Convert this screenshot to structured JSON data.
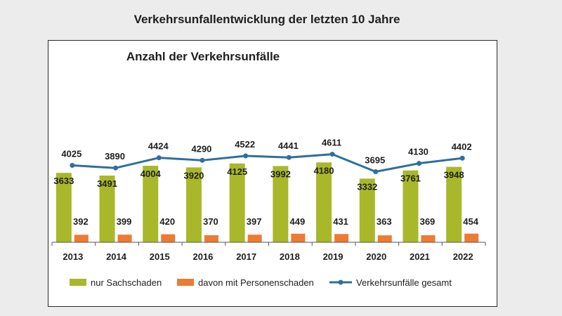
{
  "page": {
    "title": "Verkehrsunfallentwicklung der letzten 10 Jahre"
  },
  "colors": {
    "sach": "#a8b82a",
    "personen": "#ee7a33",
    "gesamt": "#2f6f9c"
  },
  "chart_data": {
    "type": "bar",
    "title": "Anzahl der Verkehrsunfälle",
    "xlabel": "",
    "ylabel": "",
    "ylim": [
      0,
      5000
    ],
    "grid": false,
    "legend": "bottom",
    "categories": [
      "2013",
      "2014",
      "2015",
      "2016",
      "2017",
      "2018",
      "2019",
      "2020",
      "2021",
      "2022"
    ],
    "series": [
      {
        "name": "nur Sachschaden",
        "type": "bar",
        "values": [
          3633,
          3491,
          4004,
          3920,
          4125,
          3992,
          4180,
          3332,
          3761,
          3948
        ]
      },
      {
        "name": "davon mit Personenschaden",
        "type": "bar",
        "values": [
          392,
          399,
          420,
          370,
          397,
          449,
          431,
          363,
          369,
          454
        ]
      },
      {
        "name": "Verkehrsunfälle gesamt",
        "type": "line",
        "values": [
          4025,
          3890,
          4424,
          4290,
          4522,
          4441,
          4611,
          3695,
          4130,
          4402
        ]
      }
    ]
  }
}
